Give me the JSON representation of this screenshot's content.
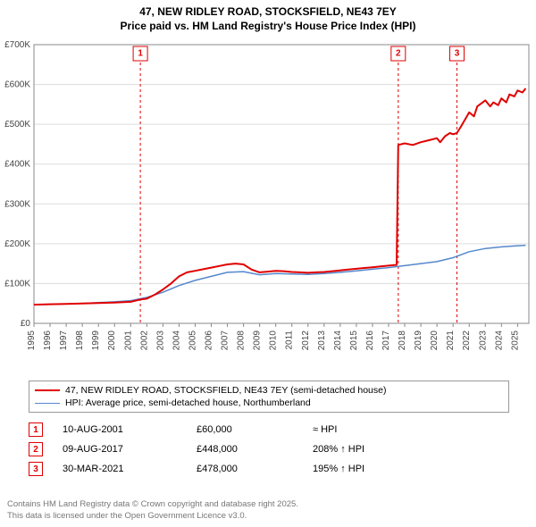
{
  "title_line1": "47, NEW RIDLEY ROAD, STOCKSFIELD, NE43 7EY",
  "title_line2": "Price paid vs. HM Land Registry's House Price Index (HPI)",
  "chart": {
    "type": "line",
    "background_color": "#ffffff",
    "grid_color": "#dddddd",
    "border_color": "#888888",
    "xlim": [
      1995,
      2025.7
    ],
    "ylim": [
      0,
      700000
    ],
    "ytick_step": 100000,
    "ytick_labels": [
      "£0",
      "£100K",
      "£200K",
      "£300K",
      "£400K",
      "£500K",
      "£600K",
      "£700K"
    ],
    "xtick_step": 1,
    "xtick_labels": [
      "1995",
      "1996",
      "1997",
      "1998",
      "1999",
      "2000",
      "2001",
      "2002",
      "2003",
      "2004",
      "2005",
      "2006",
      "2007",
      "2008",
      "2009",
      "2010",
      "2011",
      "2012",
      "2013",
      "2014",
      "2015",
      "2016",
      "2017",
      "2018",
      "2019",
      "2020",
      "2021",
      "2022",
      "2023",
      "2024",
      "2025"
    ],
    "axis_fontsize": 10,
    "series": [
      {
        "name": "price_paid",
        "label": "47, NEW RIDLEY ROAD, STOCKSFIELD, NE43 7EY (semi-detached house)",
        "color": "#e00000",
        "line_width": 2,
        "data": [
          [
            1995.0,
            47000
          ],
          [
            1996.0,
            48000
          ],
          [
            1997.0,
            49000
          ],
          [
            1998.0,
            50000
          ],
          [
            1999.0,
            51000
          ],
          [
            2000.0,
            52000
          ],
          [
            2001.0,
            54000
          ],
          [
            2001.6,
            60000
          ],
          [
            2002.0,
            62000
          ],
          [
            2002.5,
            72000
          ],
          [
            2003.0,
            85000
          ],
          [
            2003.5,
            100000
          ],
          [
            2004.0,
            118000
          ],
          [
            2004.5,
            128000
          ],
          [
            2005.0,
            132000
          ],
          [
            2005.5,
            136000
          ],
          [
            2006.0,
            140000
          ],
          [
            2006.5,
            144000
          ],
          [
            2007.0,
            148000
          ],
          [
            2007.5,
            150000
          ],
          [
            2008.0,
            148000
          ],
          [
            2008.5,
            135000
          ],
          [
            2009.0,
            128000
          ],
          [
            2009.5,
            130000
          ],
          [
            2010.0,
            132000
          ],
          [
            2010.5,
            131000
          ],
          [
            2011.0,
            129000
          ],
          [
            2011.5,
            128000
          ],
          [
            2012.0,
            127000
          ],
          [
            2012.5,
            128000
          ],
          [
            2013.0,
            129000
          ],
          [
            2013.5,
            131000
          ],
          [
            2014.0,
            133000
          ],
          [
            2014.5,
            135000
          ],
          [
            2015.0,
            137000
          ],
          [
            2015.5,
            139000
          ],
          [
            2016.0,
            141000
          ],
          [
            2016.5,
            143000
          ],
          [
            2017.0,
            145000
          ],
          [
            2017.5,
            147000
          ],
          [
            2017.6,
            448000
          ],
          [
            2018.0,
            452000
          ],
          [
            2018.5,
            448000
          ],
          [
            2019.0,
            455000
          ],
          [
            2019.5,
            460000
          ],
          [
            2020.0,
            465000
          ],
          [
            2020.2,
            455000
          ],
          [
            2020.5,
            470000
          ],
          [
            2020.8,
            478000
          ],
          [
            2021.0,
            475000
          ],
          [
            2021.24,
            478000
          ],
          [
            2021.5,
            495000
          ],
          [
            2022.0,
            530000
          ],
          [
            2022.3,
            520000
          ],
          [
            2022.5,
            545000
          ],
          [
            2023.0,
            560000
          ],
          [
            2023.3,
            545000
          ],
          [
            2023.5,
            555000
          ],
          [
            2023.8,
            548000
          ],
          [
            2024.0,
            565000
          ],
          [
            2024.3,
            555000
          ],
          [
            2024.5,
            575000
          ],
          [
            2024.8,
            570000
          ],
          [
            2025.0,
            585000
          ],
          [
            2025.3,
            580000
          ],
          [
            2025.5,
            590000
          ]
        ]
      },
      {
        "name": "hpi",
        "label": "HPI: Average price, semi-detached house, Northumberland",
        "color": "#5588cc",
        "line_width": 1.5,
        "data": [
          [
            1995.0,
            47000
          ],
          [
            1996.0,
            48000
          ],
          [
            1997.0,
            49000
          ],
          [
            1998.0,
            50000
          ],
          [
            1999.0,
            52000
          ],
          [
            2000.0,
            54000
          ],
          [
            2001.0,
            57000
          ],
          [
            2002.0,
            65000
          ],
          [
            2003.0,
            78000
          ],
          [
            2004.0,
            95000
          ],
          [
            2005.0,
            108000
          ],
          [
            2006.0,
            118000
          ],
          [
            2007.0,
            128000
          ],
          [
            2008.0,
            130000
          ],
          [
            2009.0,
            122000
          ],
          [
            2010.0,
            125000
          ],
          [
            2011.0,
            124000
          ],
          [
            2012.0,
            123000
          ],
          [
            2013.0,
            125000
          ],
          [
            2014.0,
            128000
          ],
          [
            2015.0,
            132000
          ],
          [
            2016.0,
            136000
          ],
          [
            2017.0,
            140000
          ],
          [
            2018.0,
            145000
          ],
          [
            2019.0,
            150000
          ],
          [
            2020.0,
            155000
          ],
          [
            2021.0,
            165000
          ],
          [
            2022.0,
            180000
          ],
          [
            2023.0,
            188000
          ],
          [
            2024.0,
            192000
          ],
          [
            2025.0,
            195000
          ],
          [
            2025.5,
            196000
          ]
        ]
      }
    ],
    "sale_markers": [
      {
        "n": "1",
        "x": 2001.6
      },
      {
        "n": "2",
        "x": 2017.6
      },
      {
        "n": "3",
        "x": 2021.24
      }
    ],
    "marker_line_color": "#e00000",
    "marker_line_dash": "3,3"
  },
  "legend": {
    "items": [
      {
        "color": "#e00000",
        "width": 2,
        "label": "47, NEW RIDLEY ROAD, STOCKSFIELD, NE43 7EY (semi-detached house)"
      },
      {
        "color": "#5588cc",
        "width": 1.5,
        "label": "HPI: Average price, semi-detached house, Northumberland"
      }
    ]
  },
  "sales": [
    {
      "n": "1",
      "date": "10-AUG-2001",
      "price": "£60,000",
      "hpi": "≈ HPI"
    },
    {
      "n": "2",
      "date": "09-AUG-2017",
      "price": "£448,000",
      "hpi": "208% ↑ HPI"
    },
    {
      "n": "3",
      "date": "30-MAR-2021",
      "price": "£478,000",
      "hpi": "195% ↑ HPI"
    }
  ],
  "footer_line1": "Contains HM Land Registry data © Crown copyright and database right 2025.",
  "footer_line2": "This data is licensed under the Open Government Licence v3.0."
}
